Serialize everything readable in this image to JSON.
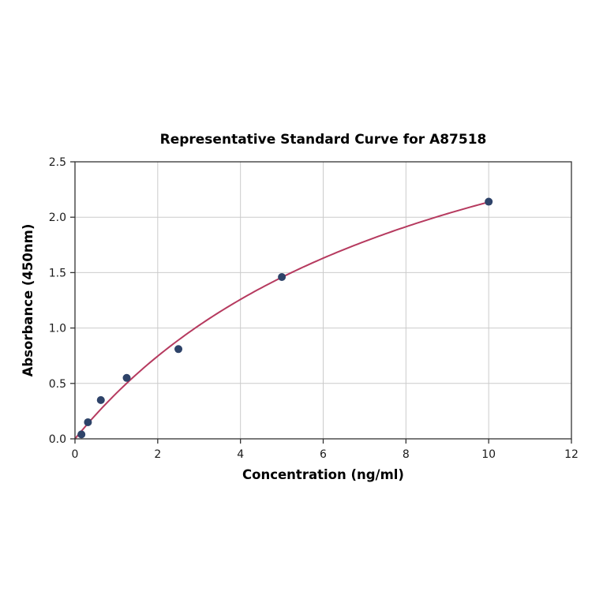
{
  "chart_data": {
    "type": "scatter",
    "title": "Representative Standard Curve for A87518",
    "xlabel": "Concentration (ng/ml)",
    "ylabel": "Absorbance (450nm)",
    "x": [
      0.156,
      0.313,
      0.625,
      1.25,
      2.5,
      5,
      10
    ],
    "y": [
      0.04,
      0.15,
      0.35,
      0.55,
      0.81,
      1.46,
      2.14
    ],
    "xlim": [
      0,
      12
    ],
    "ylim": [
      0,
      2.5
    ],
    "xticks": [
      0,
      2,
      4,
      6,
      8,
      10,
      12
    ],
    "xtick_labels": [
      "0",
      "2",
      "4",
      "6",
      "8",
      "10",
      "12"
    ],
    "yticks": [
      0.0,
      0.5,
      1.0,
      1.5,
      2.0,
      2.5
    ],
    "ytick_labels": [
      "0.0",
      "0.5",
      "1.0",
      "1.5",
      "2.0",
      "2.5"
    ],
    "grid": true,
    "legend": "none",
    "colors": {
      "point": "#2e4369",
      "curve": "#b63a5f",
      "grid": "#cbcbcb",
      "spine": "#333333",
      "background": "#ffffff"
    },
    "marker_radius": 5,
    "curve_width": 2,
    "fit": {
      "type": "michaelis_menten",
      "vmax": 4.0,
      "km": 8.72,
      "x_start": 0,
      "x_end": 10
    }
  }
}
